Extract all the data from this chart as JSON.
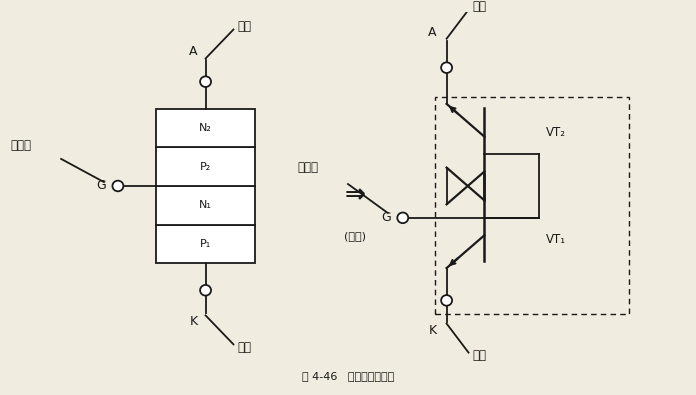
{
  "title": "图 4-46   单向晶闸管原理",
  "bg_color": "#f0ece0",
  "line_color": "#1a1a1a",
  "text_color": "#1a1a1a",
  "fig_width": 6.96,
  "fig_height": 3.95,
  "dpi": 100,
  "layers": [
    "P₁",
    "N₁",
    "P₂",
    "N₂"
  ],
  "label_yangji": "阳极",
  "label_yinji": "阴极",
  "label_kongzhiji": "控制极",
  "label_A": "A",
  "label_G": "G",
  "label_K": "K",
  "label_VT1": "VT₁",
  "label_VT2": "VT₂",
  "arrow_equiv": "⇒",
  "label_equiv": "(等效)",
  "caption": "图 4-46   单向晶闸管原理"
}
